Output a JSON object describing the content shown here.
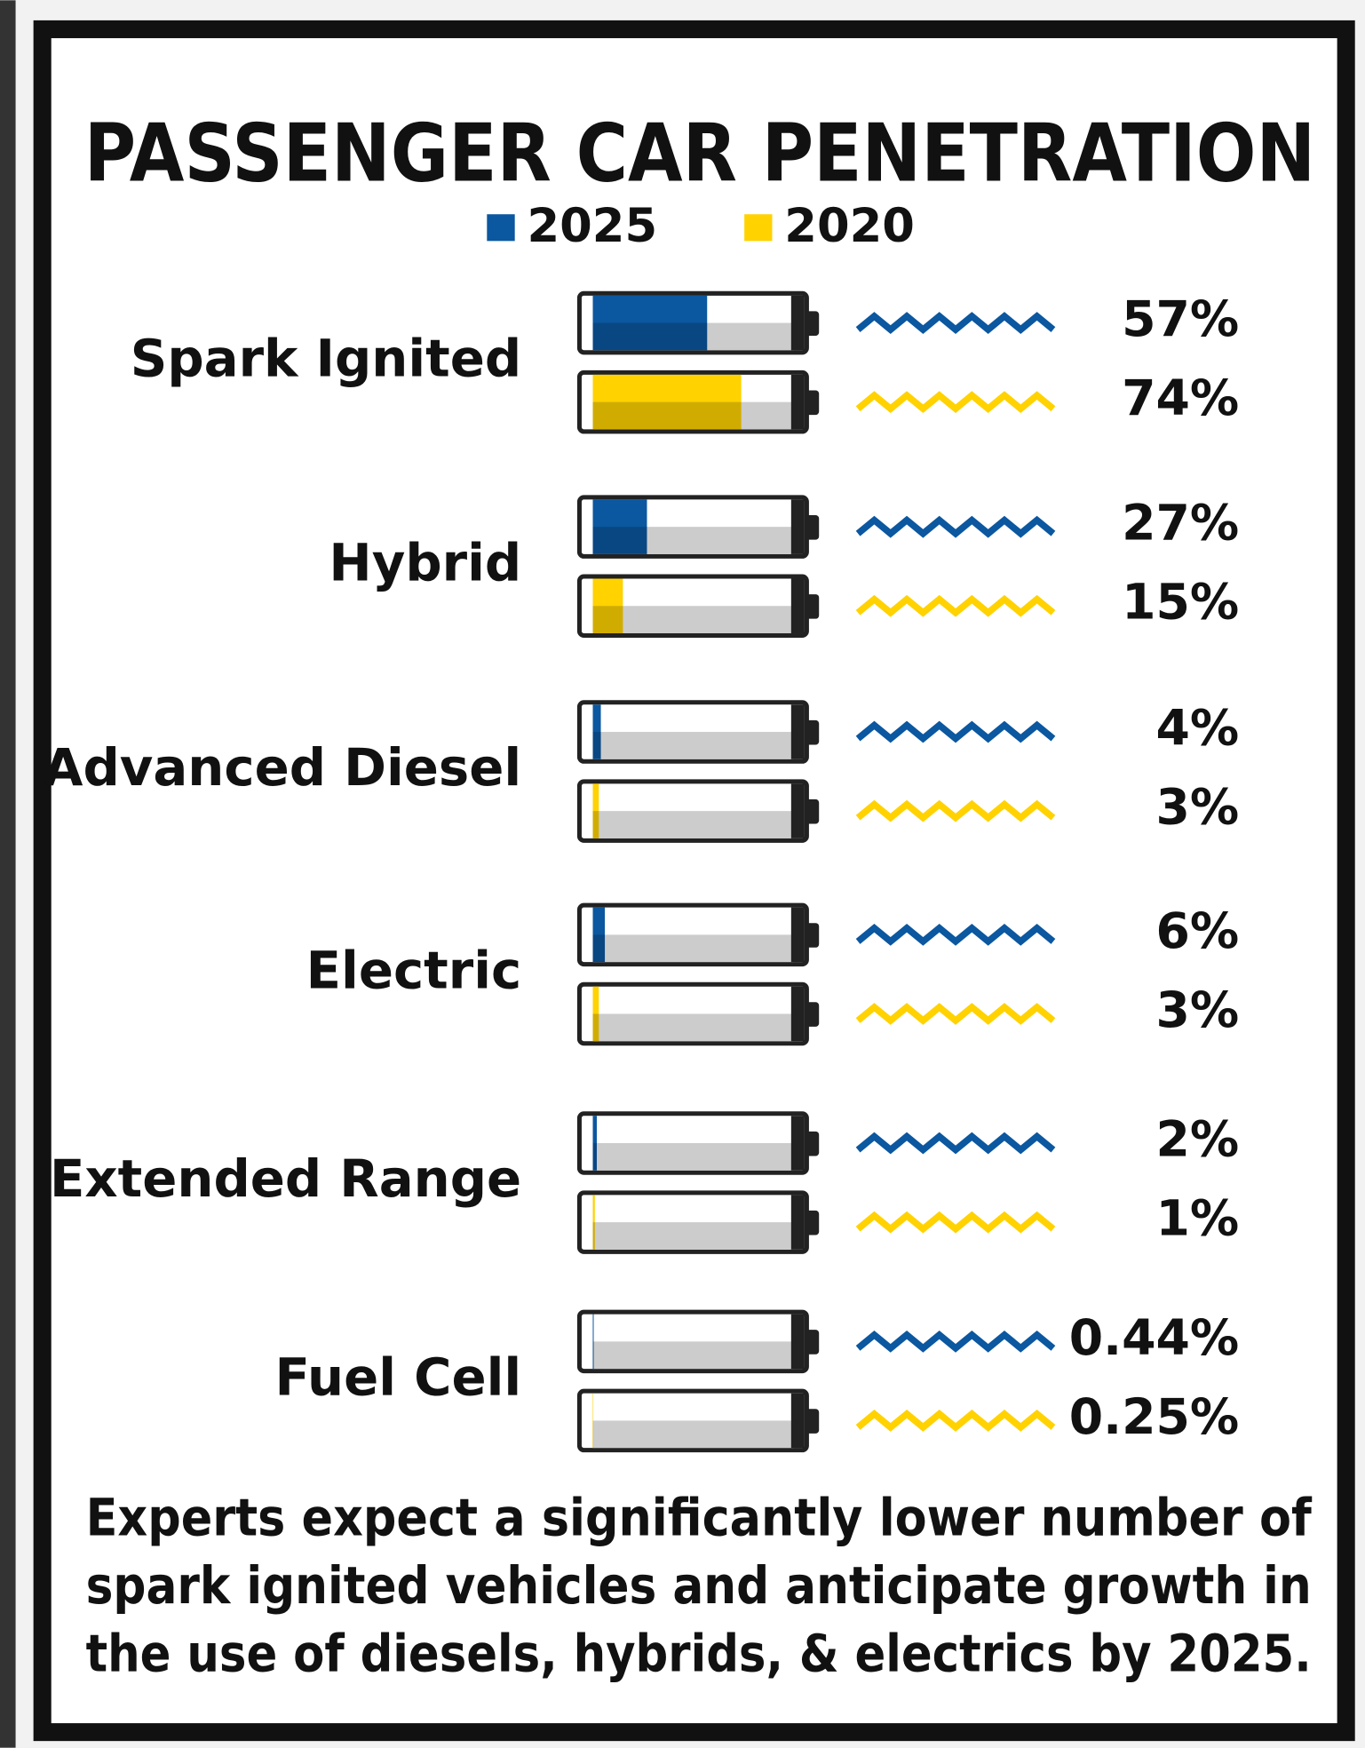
{
  "chart_data": {
    "type": "battery",
    "title": "PASSENGER CAR PENETRATION",
    "categories": [
      "Spark Ignited",
      "Hybrid",
      "Advanced Diesel",
      "Electric",
      "Extended Range",
      "Fuel Cell"
    ],
    "series": [
      {
        "name": "2025",
        "color": "#0b57a0",
        "values": [
          57,
          27,
          4,
          6,
          2,
          0.44
        ],
        "value_labels": [
          "57%",
          "27%",
          "4%",
          "6%",
          "2%",
          "0.44%"
        ]
      },
      {
        "name": "2020",
        "color": "#ffd200",
        "values": [
          74,
          15,
          3,
          3,
          1,
          0.25
        ],
        "value_labels": [
          "74%",
          "15%",
          "3%",
          "3%",
          "1%",
          "0.25%"
        ]
      }
    ],
    "xlim": [
      0,
      100
    ],
    "caption": [
      "Experts expect a significantly lower number of",
      "spark ignited vehicles and anticipate growth in",
      "the use of diesels, hybrids, & electrics by 2025."
    ]
  }
}
